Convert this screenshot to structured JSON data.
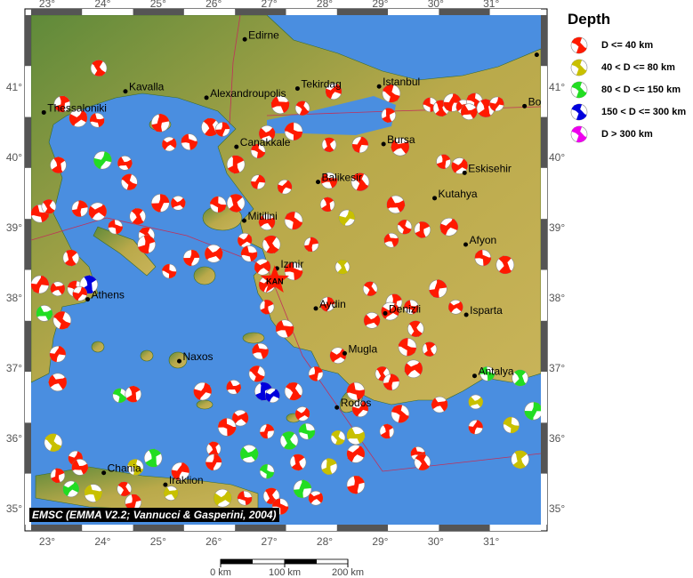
{
  "legend": {
    "title": "Depth",
    "items": [
      {
        "label": "D <= 40 km",
        "color": "#ff1a00"
      },
      {
        "label": "40 < D <= 80 km",
        "color": "#c8c000"
      },
      {
        "label": "80 < D <= 150 km",
        "color": "#22dd22"
      },
      {
        "label": "150 < D <= 300 km",
        "color": "#0000dd"
      },
      {
        "label": "D > 300 km",
        "color": "#ee00ee"
      }
    ]
  },
  "credit": "EMSC (EMMA V2.2; Vannucci & Gasperini, 2004)",
  "axes": {
    "lon_ticks": [
      "23°",
      "24°",
      "25°",
      "26°",
      "27°",
      "28°",
      "29°",
      "30°",
      "31°"
    ],
    "lon_values": [
      23,
      24,
      25,
      26,
      27,
      28,
      29,
      30,
      31
    ],
    "lat_ticks": [
      "41°",
      "40°",
      "39°",
      "38°",
      "37°",
      "36°",
      "35°"
    ],
    "lat_values": [
      41,
      40,
      39,
      38,
      37,
      36,
      35
    ],
    "lon_range": [
      22.71,
      31.89
    ],
    "lat_range": [
      34.77,
      42.03
    ]
  },
  "scale_bar": {
    "labels": [
      "0 km",
      "100 km",
      "200 km"
    ]
  },
  "colors": {
    "sea": "#4a8ee0",
    "land": "#a7a448",
    "frame_dark": "#555555"
  },
  "cities": [
    {
      "name": "Edirne",
      "lon": 26.56,
      "lat": 41.68
    },
    {
      "name": "Kavalla",
      "lon": 24.41,
      "lat": 40.94
    },
    {
      "name": "Alexandroupolis",
      "lon": 25.87,
      "lat": 40.85
    },
    {
      "name": "Tekirdag",
      "lon": 27.51,
      "lat": 40.98
    },
    {
      "name": "Istanbul",
      "lon": 28.98,
      "lat": 41.01
    },
    {
      "name": "Thessaloniki",
      "lon": 22.94,
      "lat": 40.64
    },
    {
      "name": "Canakkale",
      "lon": 26.41,
      "lat": 40.15
    },
    {
      "name": "Bursa",
      "lon": 29.06,
      "lat": 40.19
    },
    {
      "name": "Eskisehir",
      "lon": 30.52,
      "lat": 39.78
    },
    {
      "name": "Balikesir",
      "lon": 27.88,
      "lat": 39.65
    },
    {
      "name": "Kutahya",
      "lon": 29.98,
      "lat": 39.42
    },
    {
      "name": "Mitilini",
      "lon": 26.55,
      "lat": 39.1
    },
    {
      "name": "Afyon",
      "lon": 30.54,
      "lat": 38.76
    },
    {
      "name": "Izmir",
      "lon": 27.14,
      "lat": 38.42
    },
    {
      "name": "Athens",
      "lon": 23.73,
      "lat": 37.98
    },
    {
      "name": "Aydin",
      "lon": 27.84,
      "lat": 37.85
    },
    {
      "name": "Denizli",
      "lon": 29.09,
      "lat": 37.78
    },
    {
      "name": "Isparta",
      "lon": 30.55,
      "lat": 37.76
    },
    {
      "name": "Naxos",
      "lon": 25.38,
      "lat": 37.1
    },
    {
      "name": "Mugla",
      "lon": 28.36,
      "lat": 37.21
    },
    {
      "name": "Antalya",
      "lon": 30.7,
      "lat": 36.89
    },
    {
      "name": "Rodos",
      "lon": 28.22,
      "lat": 36.44
    },
    {
      "name": "Chania",
      "lon": 24.02,
      "lat": 35.51
    },
    {
      "name": "Iraklion",
      "lon": 25.13,
      "lat": 35.34
    },
    {
      "name": "Bolu",
      "lon": 31.6,
      "lat": 40.73
    }
  ],
  "marker": {
    "label": "KAN",
    "lon": 27.1,
    "lat": 38.25,
    "color": "#ff1a00"
  },
  "events": [
    [
      29.9,
      40.75,
      0
    ],
    [
      30.1,
      40.7,
      0
    ],
    [
      30.3,
      40.78,
      0
    ],
    [
      30.5,
      40.72,
      0
    ],
    [
      30.7,
      40.8,
      0
    ],
    [
      30.9,
      40.7,
      0
    ],
    [
      31.1,
      40.76,
      0
    ],
    [
      30.6,
      40.65,
      0
    ],
    [
      29.2,
      40.91,
      0
    ],
    [
      29.15,
      40.6,
      0
    ],
    [
      28.16,
      40.94,
      0
    ],
    [
      27.2,
      40.75,
      0
    ],
    [
      27.6,
      40.7,
      0
    ],
    [
      23.27,
      40.76,
      0
    ],
    [
      23.56,
      40.56,
      0
    ],
    [
      23.9,
      40.53,
      0
    ],
    [
      23.93,
      41.27,
      0
    ],
    [
      25.04,
      40.49,
      0
    ],
    [
      25.2,
      40.19,
      0
    ],
    [
      25.56,
      40.22,
      0
    ],
    [
      25.94,
      40.43,
      0
    ],
    [
      26.16,
      40.4,
      0
    ],
    [
      26.96,
      40.34,
      0
    ],
    [
      27.44,
      40.37,
      0
    ],
    [
      28.08,
      40.18,
      0
    ],
    [
      28.64,
      40.18,
      0
    ],
    [
      29.36,
      40.15,
      0
    ],
    [
      26.8,
      40.09,
      0
    ],
    [
      23.2,
      39.89,
      0
    ],
    [
      24.0,
      39.96,
      2
    ],
    [
      24.4,
      39.92,
      0
    ],
    [
      24.48,
      39.65,
      0
    ],
    [
      26.4,
      39.9,
      0
    ],
    [
      27.28,
      39.58,
      0
    ],
    [
      28.08,
      39.67,
      0
    ],
    [
      28.64,
      39.65,
      0
    ],
    [
      30.14,
      39.94,
      0
    ],
    [
      30.43,
      39.88,
      0
    ],
    [
      22.87,
      39.2,
      0
    ],
    [
      23.03,
      39.3,
      0
    ],
    [
      23.59,
      39.27,
      0
    ],
    [
      23.91,
      39.23,
      0
    ],
    [
      24.23,
      39.01,
      0
    ],
    [
      24.63,
      39.16,
      0
    ],
    [
      25.04,
      39.35,
      0
    ],
    [
      25.36,
      39.35,
      0
    ],
    [
      26.08,
      39.33,
      0
    ],
    [
      26.4,
      39.35,
      0
    ],
    [
      26.8,
      39.65,
      0
    ],
    [
      26.96,
      39.08,
      0
    ],
    [
      27.44,
      39.1,
      0
    ],
    [
      28.05,
      39.33,
      0
    ],
    [
      28.4,
      39.14,
      1
    ],
    [
      29.28,
      39.33,
      0
    ],
    [
      29.44,
      39.01,
      0
    ],
    [
      29.76,
      38.97,
      0
    ],
    [
      30.24,
      39.01,
      0
    ],
    [
      29.2,
      38.82,
      0
    ],
    [
      24.79,
      38.89,
      0
    ],
    [
      24.79,
      38.76,
      0
    ],
    [
      26.56,
      38.82,
      0
    ],
    [
      26.64,
      38.63,
      0
    ],
    [
      27.04,
      38.76,
      0
    ],
    [
      27.76,
      38.76,
      0
    ],
    [
      26.88,
      38.44,
      0
    ],
    [
      27.44,
      38.38,
      0
    ],
    [
      28.32,
      38.44,
      1
    ],
    [
      25.6,
      38.57,
      0
    ],
    [
      26.0,
      38.63,
      0
    ],
    [
      25.2,
      38.38,
      0
    ],
    [
      23.43,
      38.57,
      0
    ],
    [
      22.87,
      38.19,
      0
    ],
    [
      23.19,
      38.13,
      0
    ],
    [
      23.51,
      38.13,
      0
    ],
    [
      23.75,
      38.19,
      3
    ],
    [
      23.59,
      38.06,
      0
    ],
    [
      22.95,
      37.78,
      2
    ],
    [
      23.27,
      37.68,
      0
    ],
    [
      26.96,
      37.87,
      0
    ],
    [
      26.96,
      38.19,
      0
    ],
    [
      27.28,
      37.56,
      0
    ],
    [
      28.82,
      38.13,
      0
    ],
    [
      29.25,
      37.94,
      0
    ],
    [
      29.18,
      37.81,
      0
    ],
    [
      29.56,
      37.87,
      0
    ],
    [
      29.64,
      37.56,
      0
    ],
    [
      30.04,
      38.13,
      0
    ],
    [
      30.36,
      37.87,
      0
    ],
    [
      30.85,
      38.57,
      0
    ],
    [
      31.25,
      38.47,
      0
    ],
    [
      28.05,
      37.91,
      0
    ],
    [
      28.85,
      37.68,
      0
    ],
    [
      29.49,
      37.3,
      0
    ],
    [
      29.89,
      37.27,
      0
    ],
    [
      23.19,
      37.2,
      0
    ],
    [
      23.19,
      36.8,
      0
    ],
    [
      24.31,
      36.61,
      2
    ],
    [
      24.55,
      36.63,
      0
    ],
    [
      25.8,
      36.67,
      0
    ],
    [
      26.36,
      36.73,
      0
    ],
    [
      26.78,
      36.92,
      0
    ],
    [
      26.9,
      36.67,
      3
    ],
    [
      27.06,
      36.61,
      3
    ],
    [
      26.84,
      37.24,
      0
    ],
    [
      27.44,
      36.67,
      0
    ],
    [
      27.84,
      36.92,
      0
    ],
    [
      28.24,
      37.18,
      0
    ],
    [
      28.56,
      36.67,
      0
    ],
    [
      29.04,
      36.92,
      0
    ],
    [
      29.2,
      36.8,
      0
    ],
    [
      29.6,
      36.99,
      0
    ],
    [
      30.93,
      36.92,
      2
    ],
    [
      31.52,
      36.86,
      2
    ],
    [
      31.76,
      36.39,
      2
    ],
    [
      30.72,
      36.52,
      1
    ],
    [
      31.36,
      36.19,
      1
    ],
    [
      31.52,
      35.7,
      1
    ],
    [
      30.72,
      36.16,
      0
    ],
    [
      30.07,
      36.48,
      0
    ],
    [
      29.36,
      36.35,
      0
    ],
    [
      29.12,
      36.1,
      0
    ],
    [
      28.64,
      36.42,
      0
    ],
    [
      28.56,
      36.04,
      1
    ],
    [
      28.24,
      36.01,
      1
    ],
    [
      28.08,
      35.6,
      1
    ],
    [
      28.56,
      35.78,
      0
    ],
    [
      29.68,
      35.78,
      0
    ],
    [
      29.76,
      35.66,
      0
    ],
    [
      28.56,
      35.34,
      0
    ],
    [
      27.6,
      36.35,
      0
    ],
    [
      27.68,
      36.1,
      2
    ],
    [
      27.36,
      35.97,
      2
    ],
    [
      26.96,
      36.1,
      0
    ],
    [
      26.48,
      36.29,
      0
    ],
    [
      26.24,
      36.16,
      0
    ],
    [
      26.0,
      35.85,
      0
    ],
    [
      26.0,
      35.66,
      0
    ],
    [
      26.64,
      35.78,
      2
    ],
    [
      26.96,
      35.53,
      2
    ],
    [
      27.52,
      35.66,
      0
    ],
    [
      25.4,
      35.53,
      0
    ],
    [
      25.23,
      35.22,
      1
    ],
    [
      24.59,
      35.59,
      1
    ],
    [
      24.91,
      35.72,
      2
    ],
    [
      23.51,
      35.72,
      0
    ],
    [
      23.59,
      35.59,
      0
    ],
    [
      23.11,
      35.94,
      1
    ],
    [
      23.19,
      35.47,
      0
    ],
    [
      23.43,
      35.28,
      2
    ],
    [
      23.83,
      35.22,
      1
    ],
    [
      24.39,
      35.28,
      0
    ],
    [
      24.55,
      35.09,
      0
    ],
    [
      26.16,
      35.15,
      1
    ],
    [
      26.56,
      35.15,
      0
    ],
    [
      27.04,
      35.18,
      0
    ],
    [
      27.6,
      35.28,
      2
    ],
    [
      27.84,
      35.15,
      0
    ],
    [
      27.2,
      35.03,
      0
    ]
  ]
}
